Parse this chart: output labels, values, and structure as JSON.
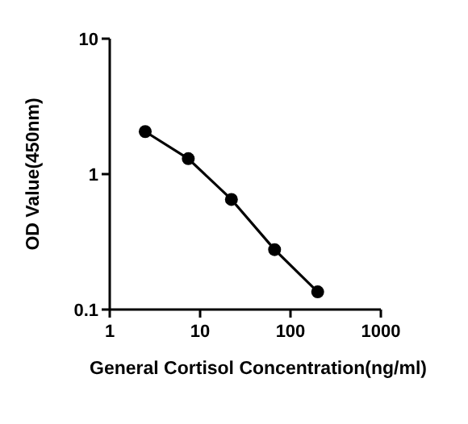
{
  "chart_data": {
    "type": "line",
    "xlabel": "General Cortisol Concentration(ng/ml)",
    "ylabel": "OD Value(450nm)",
    "log": "xy",
    "x": [
      2.47,
      7.4,
      22.2,
      66.7,
      200
    ],
    "series": [
      {
        "color": "#000000",
        "values": [
          2.06,
          1.3,
          0.65,
          0.277,
          0.135
        ]
      }
    ],
    "xlim": [
      1,
      1000
    ],
    "xticks": [
      1,
      10,
      100,
      1000
    ],
    "ylim": [
      0.1,
      10
    ],
    "yticks": [
      0.1,
      1,
      10
    ],
    "grid": false,
    "marker": "circle",
    "line_style": "solid"
  }
}
